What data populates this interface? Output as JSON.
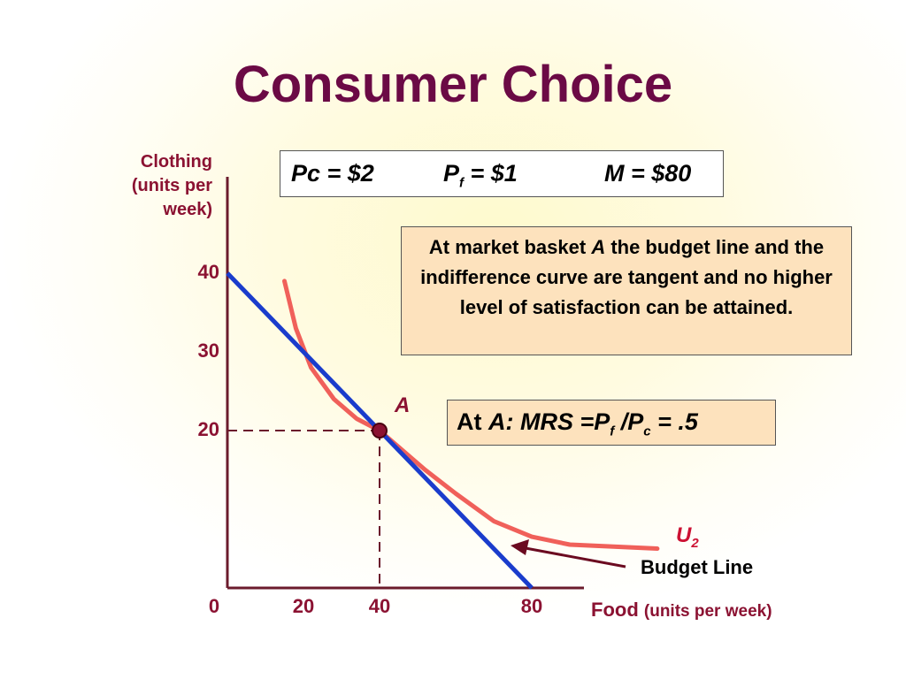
{
  "title": "Consumer Choice",
  "price_box": {
    "pc": "Pc = $2",
    "pf_main": "P",
    "pf_sub": "f",
    "pf_rest": " = $1",
    "m": "M = $80"
  },
  "note": {
    "before": "At market basket ",
    "emph": "A",
    "after": " the budget line and the indifference curve are tangent and no higher level of satisfaction can be attained."
  },
  "mrs_box": {
    "prefix": "At ",
    "a": "A: MRS =P",
    "sub1": "f",
    "mid": " /P",
    "sub2": "c",
    "end": " = .5"
  },
  "chart_data": {
    "type": "line",
    "title": "Consumer Choice",
    "ylabel": "Clothing (units per week)",
    "xlabel_main": "Food",
    "xlabel_unit": "(units per week)",
    "xlim": [
      0,
      90
    ],
    "ylim": [
      0,
      45
    ],
    "x_ticks": [
      "0",
      "20",
      "40",
      "80"
    ],
    "y_ticks": [
      "40",
      "30",
      "20"
    ],
    "x_tick_values": [
      0,
      20,
      40,
      80
    ],
    "y_tick_values": [
      40,
      30,
      20
    ],
    "series": [
      {
        "name": "Budget Line",
        "color": "#1a3ccc",
        "points": [
          [
            0,
            40
          ],
          [
            80,
            0
          ]
        ]
      },
      {
        "name": "U",
        "name_sub": "2",
        "color": "#f0605a",
        "points": [
          [
            15,
            39
          ],
          [
            18,
            33
          ],
          [
            22,
            28
          ],
          [
            28,
            24
          ],
          [
            34,
            21.5
          ],
          [
            40,
            20
          ],
          [
            46,
            17.5
          ],
          [
            52,
            15
          ],
          [
            60,
            12
          ],
          [
            70,
            8.5
          ],
          [
            80,
            6.5
          ],
          [
            90,
            5.5
          ],
          [
            113,
            5
          ]
        ]
      }
    ],
    "point": {
      "label": "A",
      "x": 40,
      "y": 20
    },
    "colors": {
      "axis": "#6b1b2c",
      "dashed": "#6b1b2c",
      "arrow": "#6b0a20",
      "label": "#8b1232"
    }
  }
}
